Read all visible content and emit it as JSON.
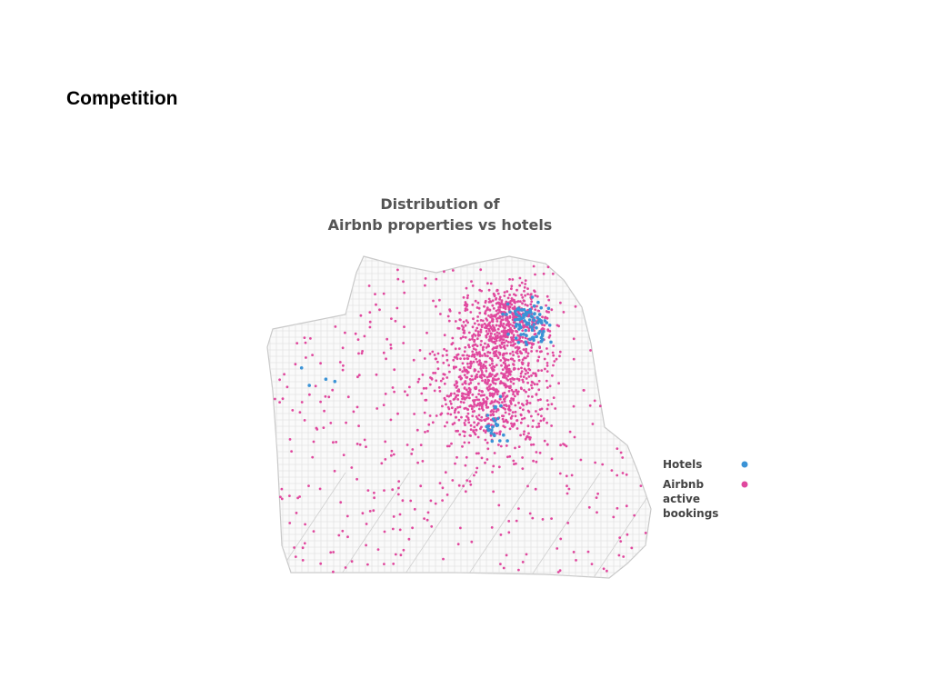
{
  "slide_title": "Competition",
  "map": {
    "title_lines": [
      "Distribution of",
      "Airbnb properties vs hotels"
    ],
    "legend": [
      {
        "label": "Hotels",
        "color": "#3b93d6"
      },
      {
        "label": "Airbnb active bookings",
        "color": "#e0489e"
      }
    ]
  }
}
